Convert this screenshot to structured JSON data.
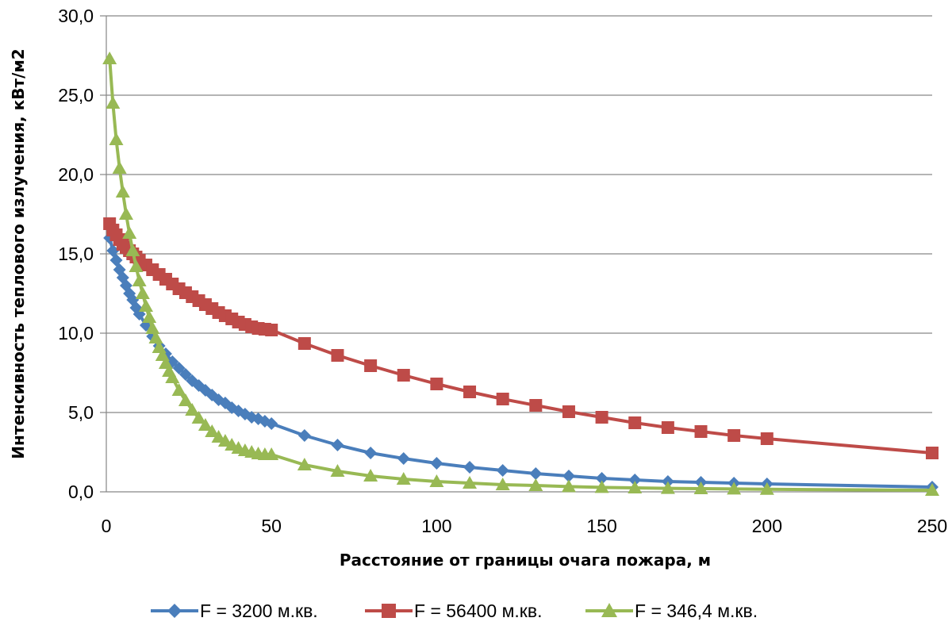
{
  "chart_data": {
    "type": "line",
    "title": "",
    "xlabel": "Расстояние от границы очага пожара, м",
    "ylabel": "Интенсивность теплового излучения, кВт/м2",
    "xlim": [
      0,
      250
    ],
    "ylim": [
      0,
      30
    ],
    "x_ticks": [
      "0",
      "50",
      "100",
      "150",
      "200",
      "250"
    ],
    "y_ticks": [
      "0,0",
      "5,0",
      "10,0",
      "15,0",
      "20,0",
      "25,0",
      "30,0"
    ],
    "grid": "horizontal",
    "legend_position": "bottom",
    "series": [
      {
        "name": "F = 3200 м.кв.",
        "color": "#4a7ebb",
        "marker": "diamond",
        "points": [
          [
            1,
            16.0
          ],
          [
            2,
            15.2
          ],
          [
            3,
            14.6
          ],
          [
            4,
            14.0
          ],
          [
            5,
            13.5
          ],
          [
            6,
            13.0
          ],
          [
            7,
            12.5
          ],
          [
            8,
            12.1
          ],
          [
            9,
            11.6
          ],
          [
            10,
            11.2
          ],
          [
            12,
            10.5
          ],
          [
            14,
            9.8
          ],
          [
            16,
            9.2
          ],
          [
            18,
            8.7
          ],
          [
            20,
            8.2
          ],
          [
            22,
            7.8
          ],
          [
            24,
            7.4
          ],
          [
            26,
            7.0
          ],
          [
            28,
            6.7
          ],
          [
            30,
            6.4
          ],
          [
            32,
            6.1
          ],
          [
            34,
            5.8
          ],
          [
            36,
            5.6
          ],
          [
            38,
            5.3
          ],
          [
            40,
            5.1
          ],
          [
            42,
            4.9
          ],
          [
            44,
            4.7
          ],
          [
            46,
            4.6
          ],
          [
            48,
            4.45
          ],
          [
            50,
            4.3
          ],
          [
            60,
            3.55
          ],
          [
            70,
            2.95
          ],
          [
            80,
            2.45
          ],
          [
            90,
            2.1
          ],
          [
            100,
            1.8
          ],
          [
            110,
            1.55
          ],
          [
            120,
            1.35
          ],
          [
            130,
            1.15
          ],
          [
            140,
            1.0
          ],
          [
            150,
            0.85
          ],
          [
            160,
            0.75
          ],
          [
            170,
            0.65
          ],
          [
            180,
            0.6
          ],
          [
            190,
            0.55
          ],
          [
            200,
            0.5
          ],
          [
            250,
            0.3
          ]
        ]
      },
      {
        "name": "F = 56400 м.кв.",
        "color": "#be4b48",
        "marker": "square",
        "points": [
          [
            1,
            16.9
          ],
          [
            2,
            16.5
          ],
          [
            3,
            16.2
          ],
          [
            4,
            15.9
          ],
          [
            5,
            15.6
          ],
          [
            6,
            15.4
          ],
          [
            7,
            15.2
          ],
          [
            8,
            15.0
          ],
          [
            9,
            14.8
          ],
          [
            10,
            14.6
          ],
          [
            12,
            14.3
          ],
          [
            14,
            14.0
          ],
          [
            16,
            13.7
          ],
          [
            18,
            13.4
          ],
          [
            20,
            13.1
          ],
          [
            22,
            12.8
          ],
          [
            24,
            12.55
          ],
          [
            26,
            12.3
          ],
          [
            28,
            12.05
          ],
          [
            30,
            11.8
          ],
          [
            32,
            11.55
          ],
          [
            34,
            11.3
          ],
          [
            36,
            11.1
          ],
          [
            38,
            10.9
          ],
          [
            40,
            10.7
          ],
          [
            42,
            10.55
          ],
          [
            44,
            10.4
          ],
          [
            46,
            10.3
          ],
          [
            48,
            10.25
          ],
          [
            50,
            10.2
          ],
          [
            60,
            9.35
          ],
          [
            70,
            8.6
          ],
          [
            80,
            7.95
          ],
          [
            90,
            7.35
          ],
          [
            100,
            6.8
          ],
          [
            110,
            6.3
          ],
          [
            120,
            5.85
          ],
          [
            130,
            5.45
          ],
          [
            140,
            5.05
          ],
          [
            150,
            4.7
          ],
          [
            160,
            4.35
          ],
          [
            170,
            4.05
          ],
          [
            180,
            3.8
          ],
          [
            190,
            3.55
          ],
          [
            200,
            3.35
          ],
          [
            250,
            2.45
          ]
        ]
      },
      {
        "name": "F = 346,4 м.кв.",
        "color": "#98b954",
        "marker": "triangle",
        "points": [
          [
            1,
            27.3
          ],
          [
            2,
            24.5
          ],
          [
            3,
            22.2
          ],
          [
            4,
            20.4
          ],
          [
            5,
            18.9
          ],
          [
            6,
            17.5
          ],
          [
            7,
            16.3
          ],
          [
            8,
            15.2
          ],
          [
            9,
            14.2
          ],
          [
            10,
            13.3
          ],
          [
            11,
            12.5
          ],
          [
            12,
            11.7
          ],
          [
            13,
            11.0
          ],
          [
            14,
            10.3
          ],
          [
            15,
            9.7
          ],
          [
            16,
            9.1
          ],
          [
            17,
            8.6
          ],
          [
            18,
            8.1
          ],
          [
            19,
            7.6
          ],
          [
            20,
            7.2
          ],
          [
            22,
            6.4
          ],
          [
            24,
            5.75
          ],
          [
            26,
            5.15
          ],
          [
            28,
            4.65
          ],
          [
            30,
            4.2
          ],
          [
            32,
            3.8
          ],
          [
            34,
            3.45
          ],
          [
            36,
            3.2
          ],
          [
            38,
            2.95
          ],
          [
            40,
            2.75
          ],
          [
            42,
            2.6
          ],
          [
            44,
            2.5
          ],
          [
            46,
            2.4
          ],
          [
            48,
            2.35
          ],
          [
            50,
            2.35
          ],
          [
            60,
            1.7
          ],
          [
            70,
            1.3
          ],
          [
            80,
            1.0
          ],
          [
            90,
            0.8
          ],
          [
            100,
            0.65
          ],
          [
            110,
            0.55
          ],
          [
            120,
            0.45
          ],
          [
            130,
            0.4
          ],
          [
            140,
            0.33
          ],
          [
            150,
            0.28
          ],
          [
            160,
            0.25
          ],
          [
            170,
            0.22
          ],
          [
            180,
            0.2
          ],
          [
            190,
            0.18
          ],
          [
            200,
            0.16
          ],
          [
            250,
            0.1
          ]
        ]
      }
    ]
  }
}
